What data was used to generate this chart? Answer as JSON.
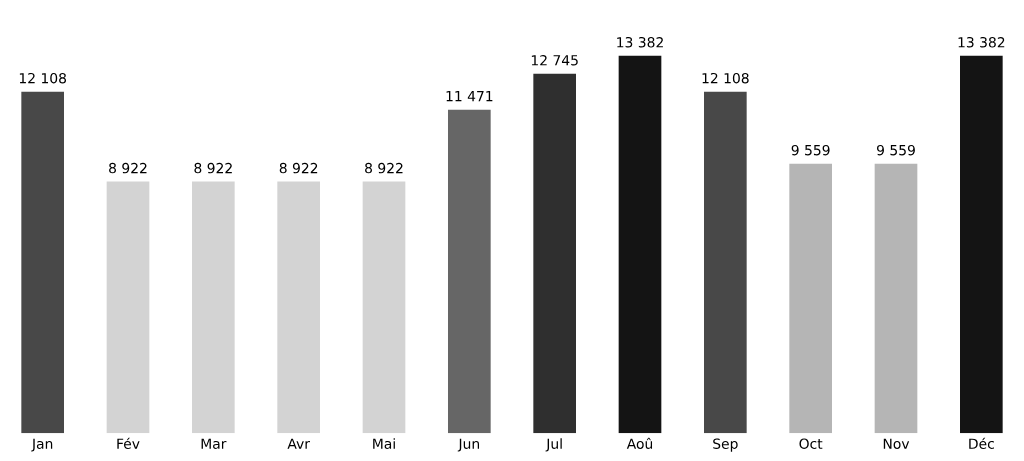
{
  "chart_data": {
    "type": "bar",
    "categories": [
      "Jan",
      "Fév",
      "Mar",
      "Avr",
      "Mai",
      "Jun",
      "Jul",
      "Aoû",
      "Sep",
      "Oct",
      "Nov",
      "Déc"
    ],
    "values": [
      12108,
      8922,
      8922,
      8922,
      8922,
      11471,
      12745,
      13382,
      12108,
      9559,
      9559,
      13382
    ],
    "value_labels": [
      "12 108",
      "8 922",
      "8 922",
      "8 922",
      "8 922",
      "11 471",
      "12 745",
      "13 382",
      "12 108",
      "9 559",
      "9 559",
      "13 382"
    ],
    "colors": [
      "#484848",
      "#d3d3d3",
      "#d3d3d3",
      "#d3d3d3",
      "#d3d3d3",
      "#666666",
      "#2f2f2f",
      "#141414",
      "#484848",
      "#b5b5b5",
      "#b5b5b5",
      "#141414"
    ],
    "tick_labels": "x",
    "grid": false,
    "legend": false
  }
}
